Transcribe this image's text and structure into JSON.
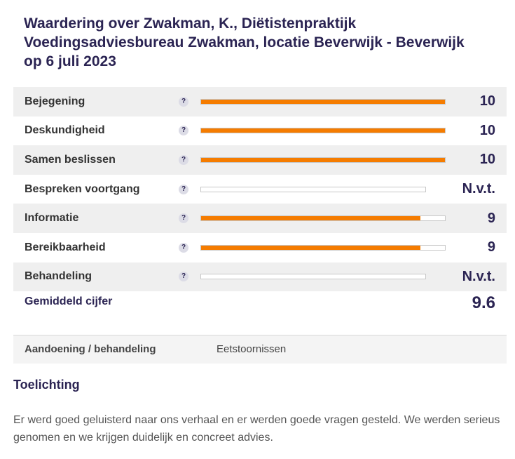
{
  "header": {
    "title_lines": [
      "Waardering over Zwakman, K., Diëtistenpraktijk",
      "Voedingsadviesbureau Zwakman, locatie Beverwijk - Beverwijk",
      "op 6 juli 2023"
    ]
  },
  "ratings": [
    {
      "label": "Bejegening",
      "help": "?",
      "score": "10",
      "fill_percent": 100,
      "bar_max_percent": 100
    },
    {
      "label": "Deskundigheid",
      "help": "?",
      "score": "10",
      "fill_percent": 100,
      "bar_max_percent": 100
    },
    {
      "label": "Samen beslissen",
      "help": "?",
      "score": "10",
      "fill_percent": 100,
      "bar_max_percent": 100
    },
    {
      "label": "Bespreken voortgang",
      "help": "?",
      "score": "N.v.t.",
      "fill_percent": 0,
      "bar_max_percent": 92
    },
    {
      "label": "Informatie",
      "help": "?",
      "score": "9",
      "fill_percent": 90,
      "bar_max_percent": 100
    },
    {
      "label": "Bereikbaarheid",
      "help": "?",
      "score": "9",
      "fill_percent": 90,
      "bar_max_percent": 100
    },
    {
      "label": "Behandeling",
      "help": "?",
      "score": "N.v.t.",
      "fill_percent": 0,
      "bar_max_percent": 92
    }
  ],
  "average": {
    "label": "Gemiddeld cijfer",
    "score": "9.6"
  },
  "meta": {
    "key": "Aandoening / behandeling",
    "value": "Eetstoornissen"
  },
  "comment": {
    "title": "Toelichting",
    "text": "Er werd goed geluisterd naar ons verhaal en er werden goede vragen gesteld. We werden serieus genomen en we krijgen duidelijk en concreet advies."
  },
  "colors": {
    "accent": "#f57c00",
    "heading": "#2b2453",
    "row_shade": "#efefef"
  }
}
